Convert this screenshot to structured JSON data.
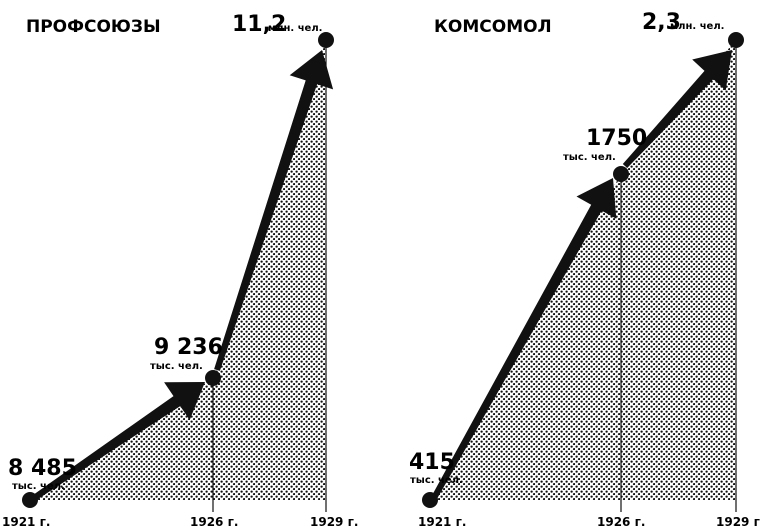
{
  "colors": {
    "ink": "#111111",
    "paper": "#ffffff"
  },
  "chart_data": [
    {
      "type": "area",
      "title": "ПРОФСОЮЗЫ",
      "x": [
        1921,
        1926,
        1929
      ],
      "tick_labels": [
        "1921 г.",
        "1926 г.",
        "1929 г."
      ],
      "values": [
        8485000,
        9236000,
        11200000
      ],
      "value_labels": [
        {
          "number": "8 485",
          "unit": "тыс. чел."
        },
        {
          "number": "9 236",
          "unit": "тыс. чел."
        },
        {
          "number": "11,2",
          "unit": "млн. чел."
        }
      ]
    },
    {
      "type": "area",
      "title": "КОМСОМОЛ",
      "x": [
        1921,
        1926,
        1929
      ],
      "tick_labels": [
        "1921 г.",
        "1926 г.",
        "1929 г."
      ],
      "values": [
        415000,
        1750000,
        2300000
      ],
      "value_labels": [
        {
          "number": "415",
          "unit": "тыс. чел."
        },
        {
          "number": "1750",
          "unit": "тыс. чел."
        },
        {
          "number": "2,3",
          "unit": "млн. чел."
        }
      ]
    }
  ]
}
